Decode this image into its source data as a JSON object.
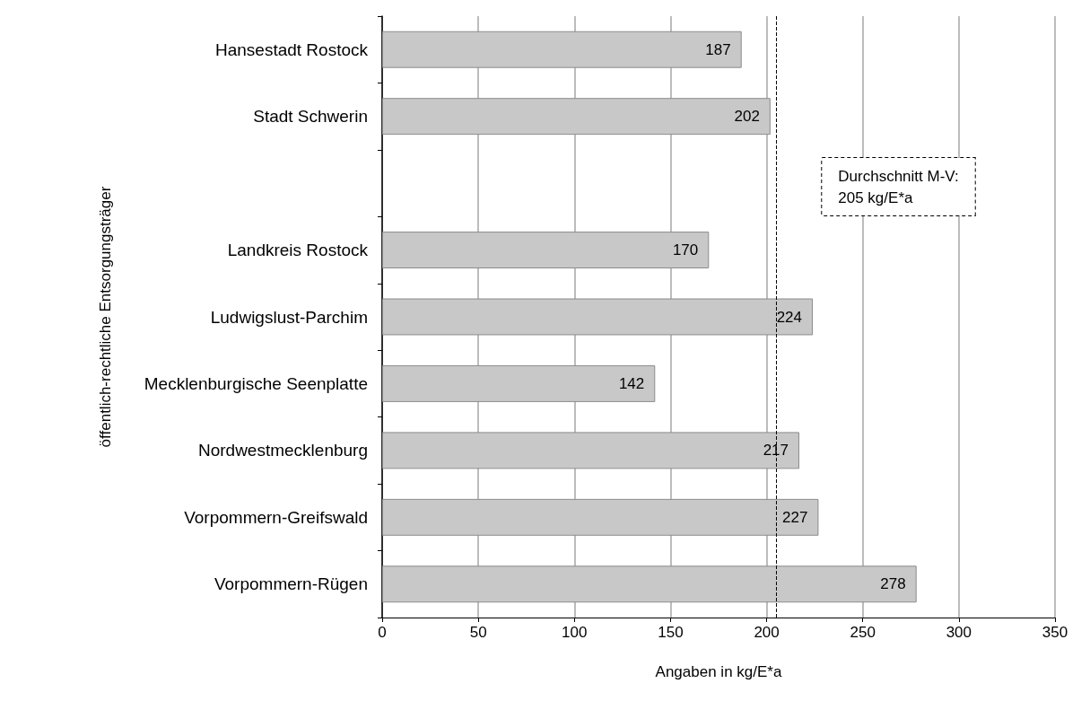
{
  "chart_data": {
    "type": "bar",
    "orientation": "horizontal",
    "xlabel": "Angaben in kg/E*a",
    "ylabel": "öffentlich-rechtliche Entsorgungsträger",
    "categories": [
      "Hansestadt Rostock",
      "Stadt Schwerin",
      null,
      "Landkreis Rostock",
      "Ludwigslust-Parchim",
      "Mecklenburgische Seenplatte",
      "Nordwestmecklenburg",
      "Vorpommern-Greifswald",
      "Vorpommern-Rügen"
    ],
    "values": [
      187,
      202,
      null,
      170,
      224,
      142,
      217,
      227,
      278
    ],
    "color": "#c8c8c8",
    "xlim": [
      0,
      350
    ],
    "xticks": [
      0,
      50,
      100,
      150,
      200,
      250,
      300,
      350
    ],
    "grid": "x",
    "data_labels": true,
    "ref_lines": [
      {
        "axis": "x",
        "value": 205,
        "label": "Durchschnitt M-V:\n205 kg/E*a",
        "line_style": "dashed",
        "color": "#000000"
      }
    ]
  }
}
